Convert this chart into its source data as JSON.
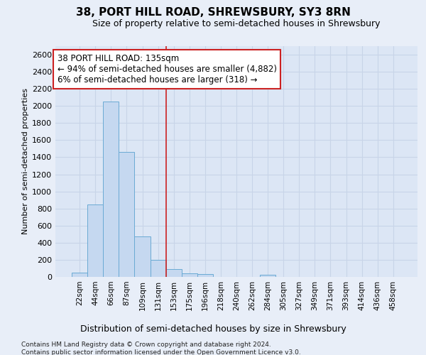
{
  "title": "38, PORT HILL ROAD, SHREWSBURY, SY3 8RN",
  "subtitle": "Size of property relative to semi-detached houses in Shrewsbury",
  "xlabel_bottom": "Distribution of semi-detached houses by size in Shrewsbury",
  "ylabel": "Number of semi-detached properties",
  "footer_line1": "Contains HM Land Registry data © Crown copyright and database right 2024.",
  "footer_line2": "Contains public sector information licensed under the Open Government Licence v3.0.",
  "bin_labels": [
    "22sqm",
    "44sqm",
    "66sqm",
    "87sqm",
    "109sqm",
    "131sqm",
    "153sqm",
    "175sqm",
    "196sqm",
    "218sqm",
    "240sqm",
    "262sqm",
    "284sqm",
    "305sqm",
    "327sqm",
    "349sqm",
    "371sqm",
    "393sqm",
    "414sqm",
    "436sqm",
    "458sqm"
  ],
  "bar_values": [
    50,
    850,
    2050,
    1460,
    470,
    200,
    95,
    45,
    30,
    0,
    0,
    0,
    25,
    0,
    0,
    0,
    0,
    0,
    0,
    0,
    0
  ],
  "bar_color": "#c5d8f0",
  "bar_edge_color": "#6aaad4",
  "grid_color": "#c8d4e8",
  "plot_bg_color": "#dce6f5",
  "fig_bg_color": "#e8eef8",
  "vline_color": "#cc2222",
  "vline_x": 5.5,
  "annotation_text_line1": "38 PORT HILL ROAD: 135sqm",
  "annotation_text_line2": "← 94% of semi-detached houses are smaller (4,882)",
  "annotation_text_line3": "6% of semi-detached houses are larger (318) →",
  "annotation_box_edge_color": "#cc2222",
  "ylim": [
    0,
    2700
  ],
  "yticks": [
    0,
    200,
    400,
    600,
    800,
    1000,
    1200,
    1400,
    1600,
    1800,
    2000,
    2200,
    2400,
    2600
  ],
  "title_fontsize": 11,
  "subtitle_fontsize": 9,
  "ylabel_fontsize": 8,
  "tick_fontsize": 8,
  "xtick_fontsize": 7.5,
  "annotation_fontsize": 8.5,
  "xlabel_bottom_fontsize": 9,
  "footer_fontsize": 6.5
}
